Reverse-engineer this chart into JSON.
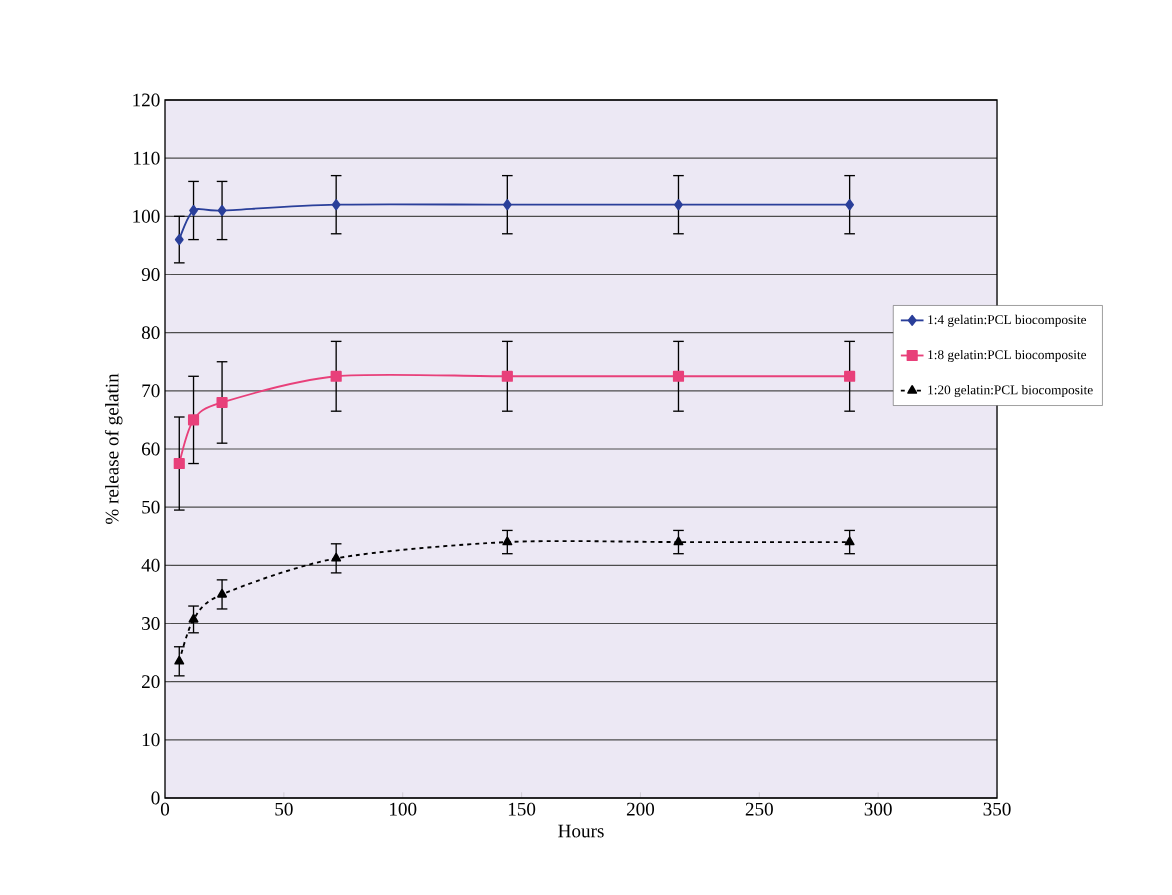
{
  "chart_data": {
    "type": "line",
    "xlabel": "Hours",
    "ylabel": "% release of gelatin",
    "xlim": [
      0,
      350
    ],
    "ylim": [
      0,
      120
    ],
    "xticks": [
      0,
      50,
      100,
      150,
      200,
      250,
      300,
      350
    ],
    "yticks": [
      0,
      10,
      20,
      30,
      40,
      50,
      60,
      70,
      80,
      90,
      100,
      110,
      120
    ],
    "grid": "y",
    "legend": "right",
    "x": [
      6,
      12,
      24,
      72,
      144,
      216,
      288
    ],
    "series": [
      {
        "name": "1:4 gelatin:PCL biocomposite",
        "color": "#2a3f9a",
        "marker": "diamond",
        "line_style": "solid",
        "values": [
          96,
          101,
          101,
          102,
          102,
          102,
          102
        ],
        "errors": [
          4,
          5,
          5,
          5,
          5,
          5,
          5
        ]
      },
      {
        "name": "1:8 gelatin:PCL biocomposite",
        "color": "#e8407a",
        "marker": "square",
        "line_style": "solid",
        "values": [
          57.5,
          65,
          68,
          72.5,
          72.5,
          72.5,
          72.5
        ],
        "errors": [
          8,
          7.5,
          7,
          6,
          6,
          6,
          6
        ]
      },
      {
        "name": "1:20 gelatin:PCL biocomposite",
        "color": "#000000",
        "marker": "triangle",
        "line_style": "dashed",
        "values": [
          23.5,
          30.7,
          35,
          41.2,
          44,
          44,
          44
        ],
        "errors": [
          2.5,
          2.3,
          2.5,
          2.5,
          2,
          2,
          2
        ]
      }
    ]
  }
}
